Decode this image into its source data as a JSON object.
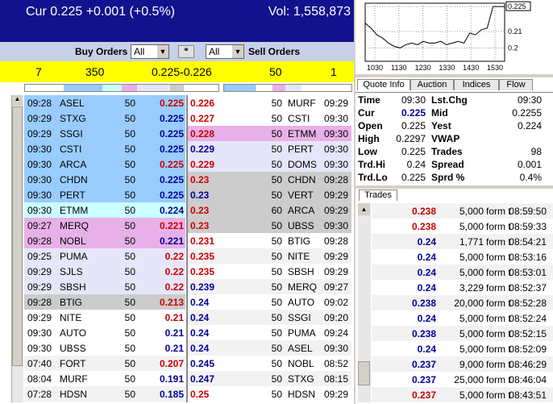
{
  "header": {
    "quote": "Cur 0.225 +0.001 (+0.5%)",
    "volume": "Vol: 1,558,873"
  },
  "controls": {
    "buy_label": "Buy Orders",
    "buy_filter": "All",
    "sell_filter": "All",
    "sell_label": "Sell Orders"
  },
  "summary": {
    "buy_count": 7,
    "buy_size": 350,
    "spread": "0.225-0.226",
    "sell_size": 50,
    "sell_count": 1
  },
  "buy_orders": [
    {
      "time": "09:28",
      "mm": "ASEL",
      "size": 50,
      "price": 0.225,
      "bg": "#99ccff",
      "color": "#cc0000"
    },
    {
      "time": "09:29",
      "mm": "STXG",
      "size": 50,
      "price": 0.225,
      "bg": "#99ccff",
      "color": "#000099"
    },
    {
      "time": "09:29",
      "mm": "SSGI",
      "size": 50,
      "price": 0.225,
      "bg": "#99ccff",
      "color": "#000099"
    },
    {
      "time": "09:30",
      "mm": "CSTI",
      "size": 50,
      "price": 0.225,
      "bg": "#99ccff",
      "color": "#000099"
    },
    {
      "time": "09:30",
      "mm": "ARCA",
      "size": 50,
      "price": 0.225,
      "bg": "#99ccff",
      "color": "#cc0000"
    },
    {
      "time": "09:30",
      "mm": "CHDN",
      "size": 50,
      "price": 0.225,
      "bg": "#99ccff",
      "color": "#000099"
    },
    {
      "time": "09:30",
      "mm": "PERT",
      "size": 50,
      "price": 0.225,
      "bg": "#99ccff",
      "color": "#000099"
    },
    {
      "time": "09:30",
      "mm": "ETMM",
      "size": 50,
      "price": 0.224,
      "bg": "#ccffff",
      "color": "#000099"
    },
    {
      "time": "09:27",
      "mm": "MERQ",
      "size": 50,
      "price": 0.221,
      "bg": "#e8b0e8",
      "color": "#cc0000"
    },
    {
      "time": "09:28",
      "mm": "NOBL",
      "size": 50,
      "price": 0.221,
      "bg": "#e8b0e8",
      "color": "#000099"
    },
    {
      "time": "09:25",
      "mm": "PUMA",
      "size": 50,
      "price": 0.22,
      "bg": "#e6e6fa",
      "color": "#cc0000"
    },
    {
      "time": "09:29",
      "mm": "SJLS",
      "size": 50,
      "price": 0.22,
      "bg": "#e6e6fa",
      "color": "#cc0000"
    },
    {
      "time": "09:29",
      "mm": "SBSH",
      "size": 50,
      "price": 0.22,
      "bg": "#e6e6fa",
      "color": "#cc0000"
    },
    {
      "time": "09:28",
      "mm": "BTIG",
      "size": 50,
      "price": 0.213,
      "bg": "#cccccc",
      "color": "#cc0000"
    },
    {
      "time": "09:29",
      "mm": "NITE",
      "size": 50,
      "price": 0.21,
      "bg": "#ffffff",
      "color": "#cc0000"
    },
    {
      "time": "09:30",
      "mm": "AUTO",
      "size": 50,
      "price": 0.21,
      "bg": "#ffffff",
      "color": "#000099"
    },
    {
      "time": "09:30",
      "mm": "UBSS",
      "size": 50,
      "price": 0.21,
      "bg": "#ffffff",
      "color": "#000099"
    },
    {
      "time": "07:40",
      "mm": "FORT",
      "size": 50,
      "price": 0.207,
      "bg": "#f2f2f2",
      "color": "#cc0000"
    },
    {
      "time": "08:04",
      "mm": "MURF",
      "size": 50,
      "price": 0.191,
      "bg": "#ffffff",
      "color": "#000099"
    },
    {
      "time": "07:28",
      "mm": "HDSN",
      "size": 50,
      "price": 0.185,
      "bg": "#f2f2f2",
      "color": "#000099"
    }
  ],
  "sell_orders": [
    {
      "price": 0.226,
      "size": 50,
      "mm": "MURF",
      "time": "09:29",
      "bg": "#ffffff",
      "color": "#cc0000"
    },
    {
      "price": 0.227,
      "size": 50,
      "mm": "CSTI",
      "time": "09:30",
      "bg": "#ffffff",
      "color": "#cc0000"
    },
    {
      "price": 0.228,
      "size": 50,
      "mm": "ETMM",
      "time": "09:30",
      "bg": "#e8b0e8",
      "color": "#cc0000"
    },
    {
      "price": 0.229,
      "size": 50,
      "mm": "PERT",
      "time": "09:30",
      "bg": "#e6e6fa",
      "color": "#000099"
    },
    {
      "price": 0.229,
      "size": 50,
      "mm": "DOMS",
      "time": "09:30",
      "bg": "#e6e6fa",
      "color": "#cc0000"
    },
    {
      "price": 0.23,
      "size": 50,
      "mm": "CHDN",
      "time": "09:28",
      "bg": "#cccccc",
      "color": "#cc0000"
    },
    {
      "price": 0.23,
      "size": 50,
      "mm": "VERT",
      "time": "09:29",
      "bg": "#cccccc",
      "color": "#000099"
    },
    {
      "price": 0.23,
      "size": 60,
      "mm": "ARCA",
      "time": "09:29",
      "bg": "#cccccc",
      "color": "#cc0000"
    },
    {
      "price": 0.23,
      "size": 50,
      "mm": "UBSS",
      "time": "09:30",
      "bg": "#cccccc",
      "color": "#cc0000"
    },
    {
      "price": 0.231,
      "size": 50,
      "mm": "BTIG",
      "time": "09:28",
      "bg": "#ffffff",
      "color": "#cc0000"
    },
    {
      "price": 0.235,
      "size": 50,
      "mm": "NITE",
      "time": "09:29",
      "bg": "#f2f2f2",
      "color": "#cc0000"
    },
    {
      "price": 0.235,
      "size": 50,
      "mm": "SBSH",
      "time": "09:29",
      "bg": "#ffffff",
      "color": "#cc0000"
    },
    {
      "price": 0.239,
      "size": 50,
      "mm": "MERQ",
      "time": "09:27",
      "bg": "#f2f2f2",
      "color": "#000099"
    },
    {
      "price": 0.24,
      "size": 50,
      "mm": "AUTO",
      "time": "09:02",
      "bg": "#ffffff",
      "color": "#000099"
    },
    {
      "price": 0.24,
      "size": 50,
      "mm": "SSGI",
      "time": "09:20",
      "bg": "#f2f2f2",
      "color": "#000099"
    },
    {
      "price": 0.24,
      "size": 50,
      "mm": "PUMA",
      "time": "09:24",
      "bg": "#ffffff",
      "color": "#000099"
    },
    {
      "price": 0.24,
      "size": 50,
      "mm": "ASEL",
      "time": "09:30",
      "bg": "#f2f2f2",
      "color": "#000099"
    },
    {
      "price": 0.245,
      "size": 50,
      "mm": "NOBL",
      "time": "08:52",
      "bg": "#ffffff",
      "color": "#000099"
    },
    {
      "price": 0.247,
      "size": 50,
      "mm": "STXG",
      "time": "08:15",
      "bg": "#f2f2f2",
      "color": "#000099"
    },
    {
      "price": 0.25,
      "size": 50,
      "mm": "HDSN",
      "time": "09:29",
      "bg": "#ffffff",
      "color": "#cc0000"
    }
  ],
  "tabs": [
    "Quote Info",
    "Auction",
    "Indices",
    "Flow"
  ],
  "quote": [
    [
      "Time",
      "09:30",
      "Lst.Chg",
      "09:30"
    ],
    [
      "Cur",
      "0.225",
      "Mid",
      "0.2255"
    ],
    [
      "Open",
      "0.225",
      "Yest",
      "0.224"
    ],
    [
      "High",
      "0.2297",
      "VWAP"
    ],
    [
      "Low",
      "0.225",
      "Trades",
      "98"
    ],
    [
      "Trd.Hi",
      "0.24",
      "Spread",
      "0.001"
    ],
    [
      "Trd.Lo",
      "0.225",
      "Sprd %",
      "0.4%"
    ]
  ],
  "trades_tab": "Trades",
  "trades": [
    {
      "price": 0.238,
      "size": "5,000",
      "cond": "form t",
      "time": "08:59:50",
      "color": "#cc0000"
    },
    {
      "price": 0.238,
      "size": "5,000",
      "cond": "form t",
      "time": "08:59:33",
      "color": "#cc0000"
    },
    {
      "price": 0.24,
      "size": "1,771",
      "cond": "form t",
      "time": "08:54:21",
      "color": "#000099"
    },
    {
      "price": 0.24,
      "size": "5,000",
      "cond": "form t",
      "time": "08:53:16",
      "color": "#000099"
    },
    {
      "price": 0.24,
      "size": "5,000",
      "cond": "form t",
      "time": "08:53:01",
      "color": "#000099"
    },
    {
      "price": 0.24,
      "size": "3,229",
      "cond": "form t",
      "time": "08:52:37",
      "color": "#000099"
    },
    {
      "price": 0.238,
      "size": "20,000",
      "cond": "form t",
      "time": "08:52:28",
      "color": "#000099"
    },
    {
      "price": 0.24,
      "size": "5,000",
      "cond": "form t",
      "time": "08:52:24",
      "color": "#000099"
    },
    {
      "price": 0.238,
      "size": "5,000",
      "cond": "form t",
      "time": "08:52:15",
      "color": "#000099"
    },
    {
      "price": 0.24,
      "size": "5,000",
      "cond": "form t",
      "time": "08:52:09",
      "color": "#000099"
    },
    {
      "price": 0.237,
      "size": "9,000",
      "cond": "form t",
      "time": "08:46:29",
      "color": "#000099"
    },
    {
      "price": 0.237,
      "size": "25,000",
      "cond": "form t",
      "time": "08:46:04",
      "color": "#000099"
    },
    {
      "price": 0.237,
      "size": "5,000",
      "cond": "form t",
      "time": "08:43:51",
      "color": "#cc0000"
    }
  ],
  "mini_chart": {
    "type": "line",
    "x_labels": [
      "1030",
      "1130",
      "1230",
      "1330",
      "1430",
      "1530"
    ],
    "yticks": [
      0.225,
      0.21,
      0.2
    ],
    "ylim": [
      0.192,
      0.227
    ],
    "color": "#000000",
    "values": [
      0.215,
      0.212,
      0.208,
      0.206,
      0.203,
      0.201,
      0.2,
      0.202,
      0.203,
      0.202,
      0.204,
      0.203,
      0.203,
      0.204,
      0.202,
      0.203,
      0.204,
      0.203,
      0.209,
      0.208,
      0.211,
      0.212,
      0.225,
      0.225,
      0.225
    ]
  }
}
